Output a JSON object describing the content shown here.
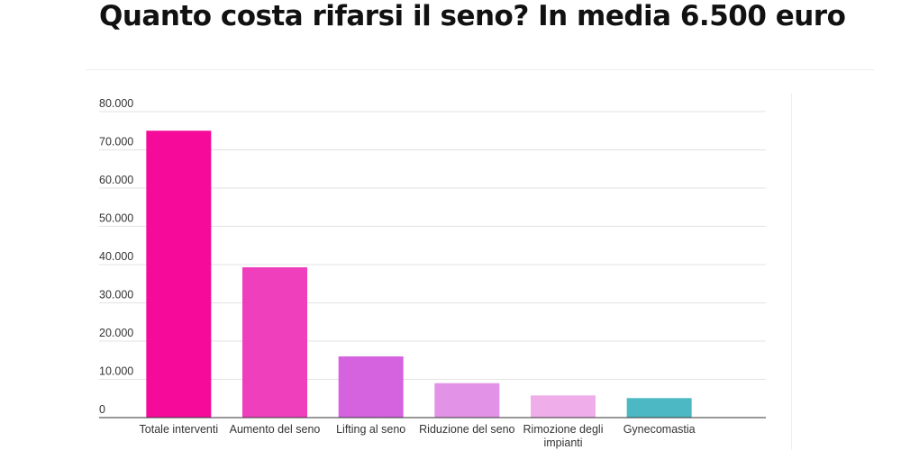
{
  "headline": "Quanto costa rifarsi il seno? In media 6.500 euro",
  "chart_data": {
    "type": "bar",
    "title": "",
    "xlabel": "",
    "ylabel": "",
    "ylim": [
      0,
      80000
    ],
    "grid": true,
    "y_ticks": [
      0,
      10000,
      20000,
      30000,
      40000,
      50000,
      60000,
      70000,
      80000
    ],
    "y_tick_labels": [
      "0",
      "10.000",
      "20.000",
      "30.000",
      "40.000",
      "50.000",
      "60.000",
      "70.000",
      "80.000"
    ],
    "categories": [
      [
        "Totale interventi"
      ],
      [
        "Aumento del seno"
      ],
      [
        "Lifting al seno"
      ],
      [
        "Riduzione del seno"
      ],
      [
        "Rimozione degli",
        "impianti"
      ],
      [
        "Gynecomastia"
      ]
    ],
    "values": [
      75000,
      39300,
      16000,
      9000,
      5800,
      5100
    ],
    "colors": [
      "#f50a9a",
      "#f03fbd",
      "#d562de",
      "#e393e7",
      "#efaee9",
      "#4bb8c4"
    ]
  }
}
